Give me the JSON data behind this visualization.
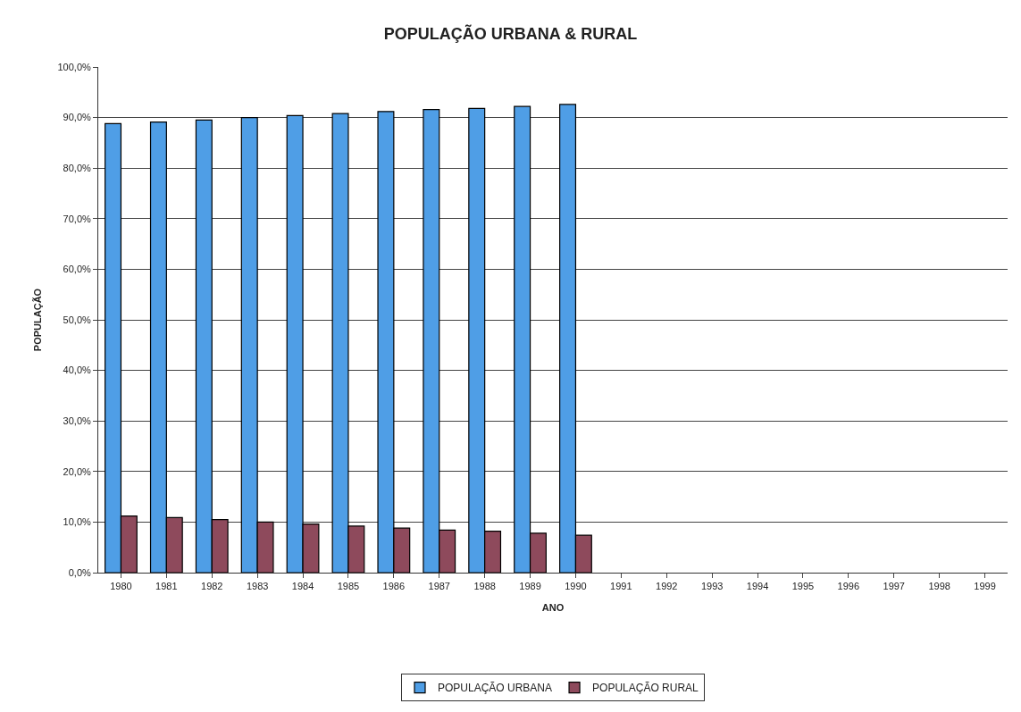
{
  "chart_data": {
    "type": "bar",
    "title": "POPULAÇÃO URBANA & RURAL",
    "xlabel": "ANO",
    "ylabel": "POPULAÇÃO",
    "categories": [
      "1980",
      "1981",
      "1982",
      "1983",
      "1984",
      "1985",
      "1986",
      "1987",
      "1988",
      "1989",
      "1990",
      "1991",
      "1992",
      "1993",
      "1994",
      "1995",
      "1996",
      "1997",
      "1998",
      "1999"
    ],
    "series": [
      {
        "name": "POPULAÇÃO URBANA",
        "color": "#4f9ee6",
        "values": [
          88.8,
          89.1,
          89.5,
          90.0,
          90.4,
          90.8,
          91.2,
          91.6,
          91.8,
          92.2,
          92.6,
          null,
          null,
          null,
          null,
          null,
          null,
          null,
          null,
          null
        ]
      },
      {
        "name": "POPULAÇÃO RURAL",
        "color": "#8e4a5c",
        "values": [
          11.2,
          10.9,
          10.5,
          10.0,
          9.6,
          9.2,
          8.8,
          8.4,
          8.2,
          7.8,
          7.4,
          null,
          null,
          null,
          null,
          null,
          null,
          null,
          null,
          null
        ]
      }
    ],
    "ylim": [
      0,
      100
    ],
    "yticks": [
      {
        "value": 0,
        "label": "0,0%"
      },
      {
        "value": 10,
        "label": "10,0%"
      },
      {
        "value": 20,
        "label": "20,0%"
      },
      {
        "value": 30,
        "label": "30,0%"
      },
      {
        "value": 40,
        "label": "40,0%"
      },
      {
        "value": 50,
        "label": "50,0%"
      },
      {
        "value": 60,
        "label": "60,0%"
      },
      {
        "value": 70,
        "label": "70,0%"
      },
      {
        "value": 80,
        "label": "80,0%"
      },
      {
        "value": 90,
        "label": "90,0%"
      },
      {
        "value": 100,
        "label": "100,0%"
      }
    ],
    "grid": "y",
    "legend": "bottom"
  }
}
